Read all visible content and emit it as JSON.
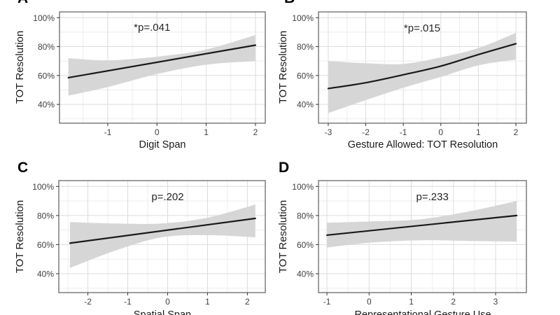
{
  "style": {
    "background": "#ffffff",
    "line_color": "#1a1a1a",
    "band_color": "#d6d6d6",
    "grid_major": "#dcdcdc",
    "grid_minor": "#eeeeee",
    "border_color": "#4d4d4d",
    "tick_color": "#333333",
    "tick_label_color": "#404040",
    "axis_title_color": "#1a1a1a",
    "annotation_color": "#262626",
    "letter_color": "#000000"
  },
  "chart_data": [
    {
      "type": "line",
      "panel_label": "A",
      "xlabel": "Digit Span",
      "ylabel": "TOT Resolution",
      "annotation": {
        "text": "*p=.041",
        "x": -0.1,
        "y": 91
      },
      "xlim": [
        -1.98,
        2.2
      ],
      "ylim": [
        27,
        104
      ],
      "x_ticks": [
        -1,
        0,
        1,
        2
      ],
      "x_tick_labels": [
        "-1",
        "0",
        "1",
        "2"
      ],
      "x_minor_ticks": [
        -1.5,
        -0.5,
        0.5,
        1.5
      ],
      "y_ticks": [
        40,
        60,
        80,
        100
      ],
      "y_tick_labels": [
        "40%",
        "60%",
        "80%",
        "100%"
      ],
      "y_minor_ticks": [
        30,
        50,
        70,
        90
      ],
      "grid": true,
      "legend": "none",
      "line": {
        "x": [
          -1.8,
          2.0
        ],
        "y": [
          58.5,
          81
        ]
      },
      "band": {
        "x": [
          -1.8,
          -1,
          0,
          1,
          2.0
        ],
        "lower": [
          46,
          52,
          61,
          67.5,
          70
        ],
        "upper": [
          72,
          70.5,
          73,
          78,
          88
        ]
      }
    },
    {
      "type": "line",
      "panel_label": "B",
      "xlabel": "Gesture Allowed: TOT Resolution",
      "ylabel": "TOT Resolution",
      "annotation": {
        "text": "*p=.015",
        "x": -0.5,
        "y": 90.5
      },
      "xlim": [
        -3.26,
        2.28
      ],
      "ylim": [
        27,
        104
      ],
      "x_ticks": [
        -3,
        -2,
        -1,
        0,
        1,
        2
      ],
      "x_tick_labels": [
        "-3",
        "-2",
        "-1",
        "0",
        "1",
        "2"
      ],
      "x_minor_ticks": [
        -2.5,
        -1.5,
        -0.5,
        0.5,
        1.5
      ],
      "y_ticks": [
        40,
        60,
        80,
        100
      ],
      "y_tick_labels": [
        "40%",
        "60%",
        "80%",
        "100%"
      ],
      "y_minor_ticks": [
        30,
        50,
        70,
        90
      ],
      "grid": true,
      "legend": "none",
      "line": {
        "x": [
          -3,
          -2,
          -1,
          0,
          1,
          2
        ],
        "y": [
          51,
          55,
          60.5,
          66.5,
          74.5,
          82
        ]
      },
      "band": {
        "x": [
          -3,
          -2,
          -1,
          0,
          1,
          2
        ],
        "lower": [
          34,
          43,
          51.5,
          59,
          67,
          71
        ],
        "upper": [
          70,
          68.5,
          68,
          72.5,
          79,
          89.5
        ]
      }
    },
    {
      "type": "line",
      "panel_label": "C",
      "xlabel": "Spatial Span",
      "ylabel": "TOT Resolution",
      "annotation": {
        "text": "p=.202",
        "x": 0,
        "y": 90.5
      },
      "xlim": [
        -2.73,
        2.45
      ],
      "ylim": [
        27,
        104
      ],
      "x_ticks": [
        -2,
        -1,
        0,
        1,
        2
      ],
      "x_tick_labels": [
        "-2",
        "-1",
        "0",
        "1",
        "2"
      ],
      "x_minor_ticks": [
        -2.5,
        -1.5,
        -0.5,
        0.5,
        1.5
      ],
      "y_ticks": [
        40,
        60,
        80,
        100
      ],
      "y_tick_labels": [
        "40%",
        "60%",
        "80%",
        "100%"
      ],
      "y_minor_ticks": [
        30,
        50,
        70,
        90
      ],
      "grid": true,
      "legend": "none",
      "line": {
        "x": [
          -2.45,
          2.2
        ],
        "y": [
          61,
          78
        ]
      },
      "band": {
        "x": [
          -2.45,
          -1.3,
          -0.15,
          1.0,
          2.2
        ],
        "lower": [
          44,
          56,
          65,
          66.5,
          65
        ],
        "upper": [
          75.5,
          74.5,
          74.5,
          78.5,
          87.5
        ]
      }
    },
    {
      "type": "line",
      "panel_label": "D",
      "xlabel": "Representational Gesture Use",
      "ylabel": "TOT Resolution",
      "annotation": {
        "text": "p=.233",
        "x": 1.5,
        "y": 90.5
      },
      "xlim": [
        -1.2,
        3.73
      ],
      "ylim": [
        27,
        104
      ],
      "x_ticks": [
        -1,
        0,
        1,
        2,
        3
      ],
      "x_tick_labels": [
        "-1",
        "0",
        "1",
        "2",
        "3"
      ],
      "x_minor_ticks": [
        -0.5,
        0.5,
        1.5,
        2.5,
        3.5
      ],
      "y_ticks": [
        40,
        60,
        80,
        100
      ],
      "y_tick_labels": [
        "40%",
        "60%",
        "80%",
        "100%"
      ],
      "y_minor_ticks": [
        30,
        50,
        70,
        90
      ],
      "grid": true,
      "legend": "none",
      "line": {
        "x": [
          -1,
          3.5
        ],
        "y": [
          66.5,
          80
        ]
      },
      "band": {
        "x": [
          -1,
          0.1,
          1.25,
          2.4,
          3.5
        ],
        "lower": [
          58,
          61.5,
          63,
          62.5,
          62
        ],
        "upper": [
          75,
          76,
          77.5,
          83,
          90
        ]
      }
    }
  ]
}
